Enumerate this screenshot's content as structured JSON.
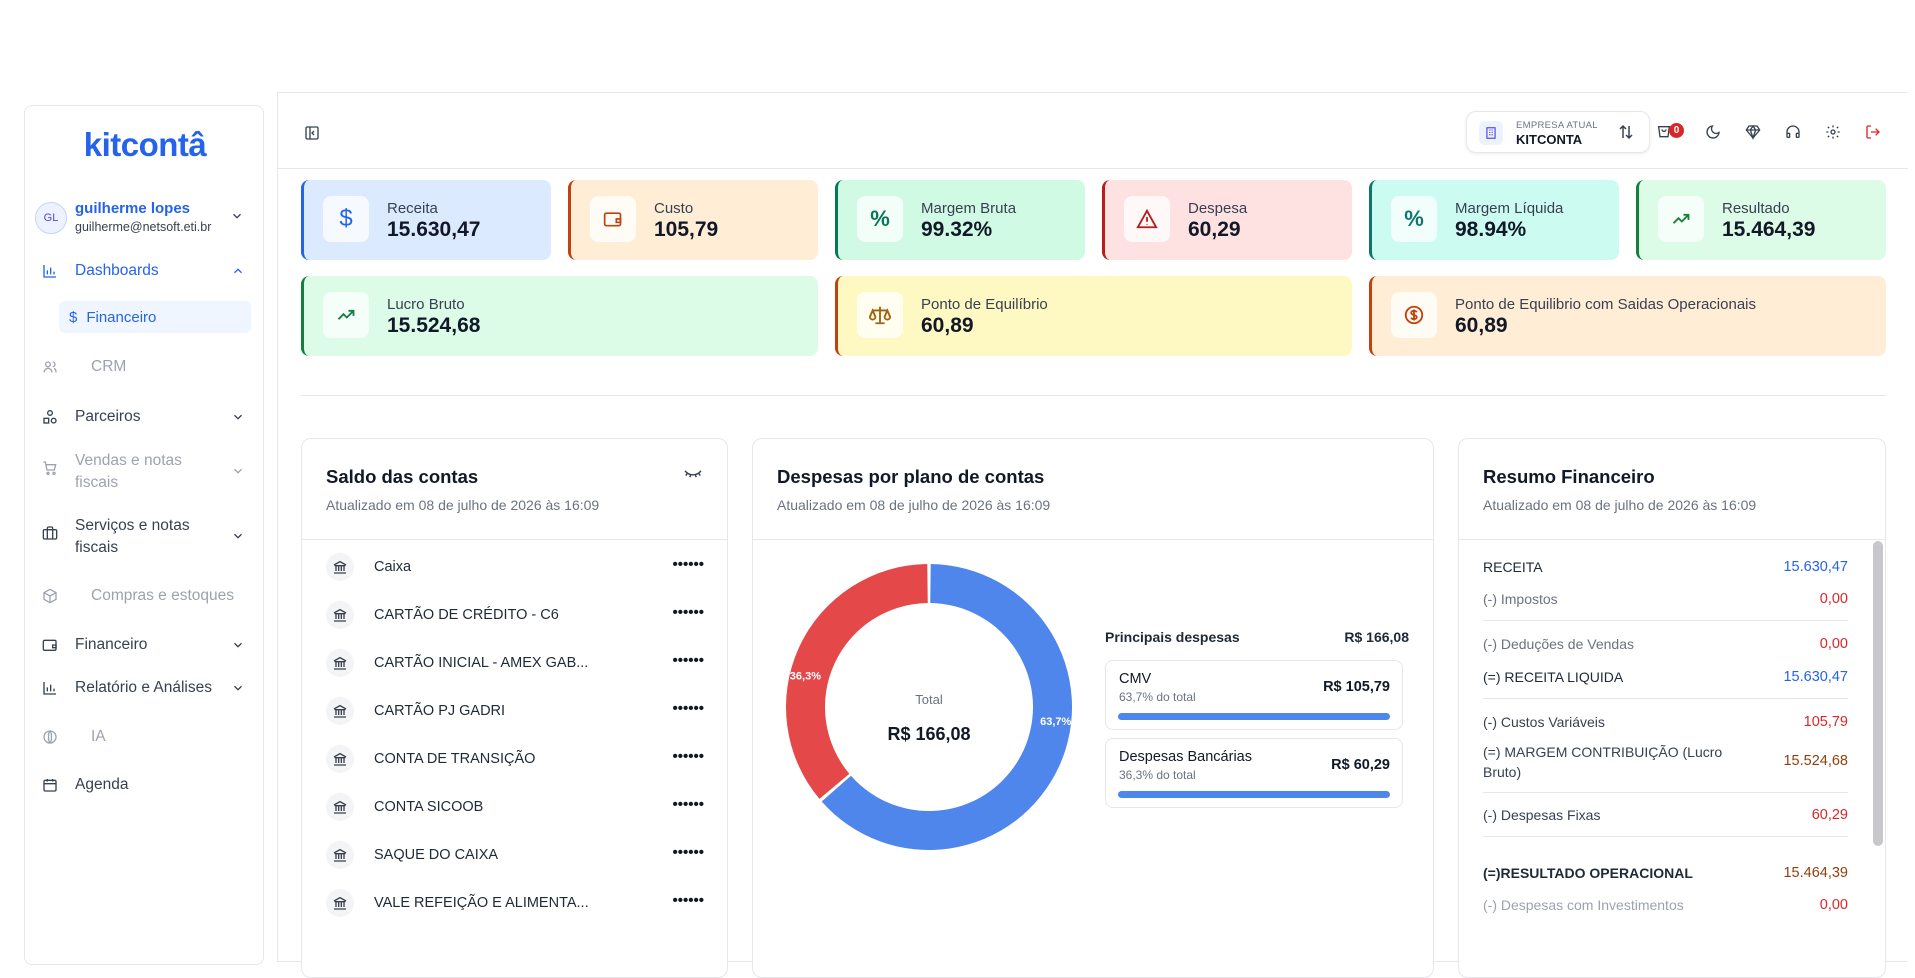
{
  "sidebar": {
    "logo": "kitcontâ",
    "user": {
      "initials": "GL",
      "name": "guilherme lopes",
      "email": "guilherme@netsoft.eti.br"
    },
    "nav": {
      "dashboards": "Dashboards",
      "financeiro_sub": "Financeiro",
      "crm": "CRM",
      "parceiros": "Parceiros",
      "vendas": "Vendas e notas fiscais",
      "servicos": "Serviços e notas fiscais",
      "compras": "Compras e estoques",
      "financeiro": "Financeiro",
      "relatorios": "Relatório e Análises",
      "ia": "IA",
      "agenda": "Agenda"
    }
  },
  "topbar": {
    "company_label": "EMPRESA ATUAL",
    "company_name": "KITCONTA",
    "cart_count": "0"
  },
  "kpis": [
    {
      "label": "Receita",
      "value": "15.630,47"
    },
    {
      "label": "Custo",
      "value": "105,79"
    },
    {
      "label": "Margem Bruta",
      "value": "99.32%"
    },
    {
      "label": "Despesa",
      "value": "60,29"
    },
    {
      "label": "Margem Líquida",
      "value": "98.94%"
    },
    {
      "label": "Resultado",
      "value": "15.464,39"
    },
    {
      "label": "Lucro Bruto",
      "value": "15.524,68"
    },
    {
      "label": "Ponto de Equilíbrio",
      "value": "60,89"
    },
    {
      "label": "Ponto de Equilibrio com Saidas Operacionais",
      "value": "60,89"
    }
  ],
  "saldo": {
    "title": "Saldo das contas",
    "updated": "Atualizado em 08 de julho de 2026 às 16:09",
    "hidden_value": "••••••",
    "accounts": [
      "Caixa",
      "CARTÃO DE CRÉDITO - C6",
      "CARTÃO INICIAL - AMEX GAB...",
      "CARTÃO PJ GADRI",
      "CONTA DE TRANSIÇÃO",
      "CONTA SICOOB",
      "SAQUE DO CAIXA",
      "VALE REFEIÇÃO E ALIMENTA..."
    ]
  },
  "despesas": {
    "title": "Despesas por plano de contas",
    "updated": "Atualizado em 08 de julho de 2026 às 16:09",
    "total_label": "Total",
    "total_value": "R$ 166,08",
    "principais_label": "Principais despesas",
    "principais_total": "R$ 166,08",
    "items": [
      {
        "name": "CMV",
        "pct_text": "63,7% do total",
        "value": "R$ 105,79"
      },
      {
        "name": "Despesas Bancárias",
        "pct_text": "36,3% do total",
        "value": "R$ 60,29"
      }
    ]
  },
  "chart_data": {
    "type": "pie",
    "categories": [
      "CMV",
      "Despesas Bancárias"
    ],
    "values": [
      105.79,
      60.29
    ],
    "data_labels": [
      "63,7%",
      "36,3%"
    ],
    "colors": [
      "#4f86ec",
      "#e54848"
    ]
  },
  "resumo": {
    "title": "Resumo Financeiro",
    "updated": "Atualizado em 08 de julho de 2026 às 16:09",
    "rows": [
      {
        "label": "RECEITA",
        "value": "15.630,47"
      },
      {
        "label": "(-) Impostos",
        "value": "0,00"
      },
      {
        "label": "(-) Deduções de Vendas",
        "value": "0,00"
      },
      {
        "label": "(=) RECEITA LIQUIDA",
        "value": "15.630,47"
      },
      {
        "label": "(-) Custos Variáveis",
        "value": "105,79"
      },
      {
        "label": "(=) MARGEM CONTRIBUIÇÃO (Lucro Bruto)",
        "value": "15.524,68"
      },
      {
        "label": "(-) Despesas Fixas",
        "value": "60,29"
      },
      {
        "label": "(=)RESULTADO OPERACIONAL",
        "value": "15.464,39"
      },
      {
        "label": "(-) Despesas com Investimentos",
        "value": "0,00"
      }
    ]
  }
}
